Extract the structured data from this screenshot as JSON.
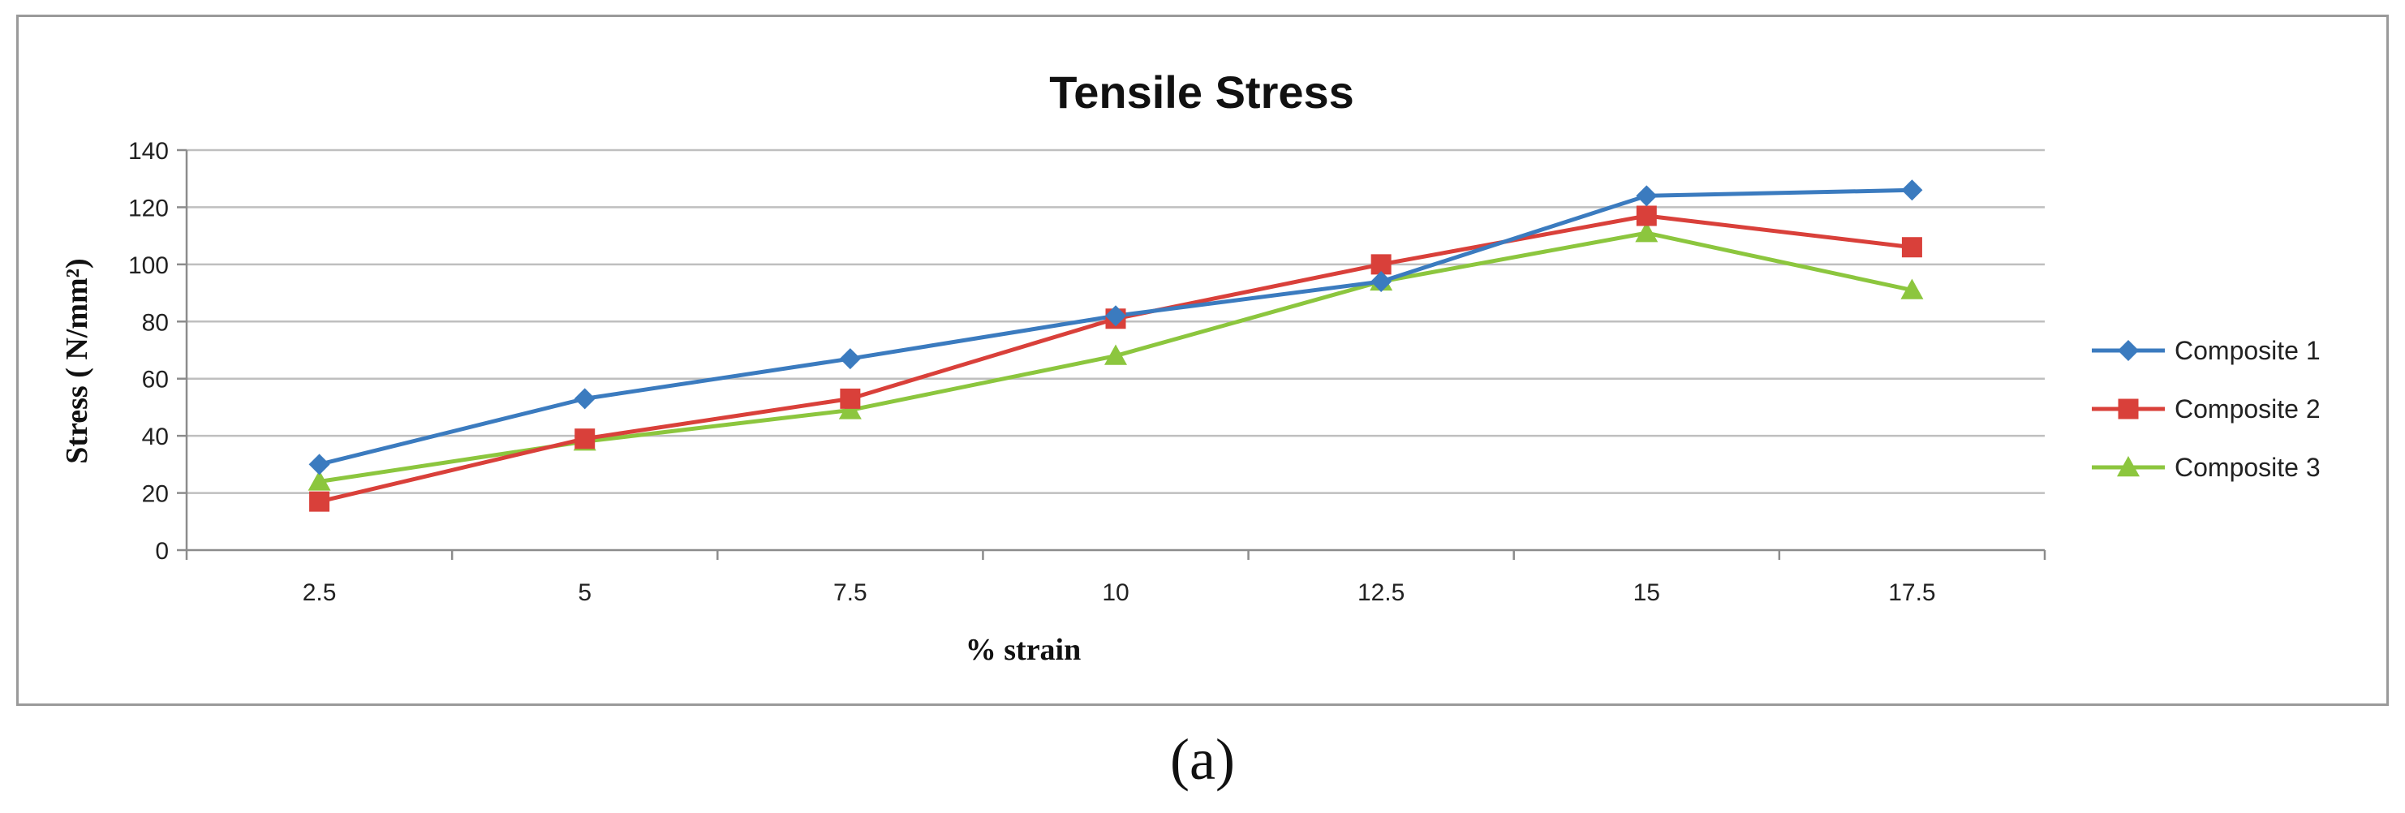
{
  "caption": "(a)",
  "chart_data": {
    "type": "line",
    "title": "Tensile Stress",
    "xlabel": "% strain",
    "ylabel": "Stress ( N/mm²)",
    "categories": [
      "2.5",
      "5",
      "7.5",
      "10",
      "12.5",
      "15",
      "17.5"
    ],
    "ylim": [
      0,
      140
    ],
    "yticks": [
      0,
      20,
      40,
      60,
      80,
      100,
      120,
      140
    ],
    "grid": true,
    "legend_position": "right",
    "series": [
      {
        "name": "Composite 1",
        "color": "#3b7bbf",
        "marker": "diamond",
        "values": [
          30,
          53,
          67,
          82,
          94,
          124,
          126
        ]
      },
      {
        "name": "Composite 2",
        "color": "#d9403a",
        "marker": "square",
        "values": [
          17,
          39,
          53,
          81,
          100,
          117,
          106
        ]
      },
      {
        "name": "Composite 3",
        "color": "#8cc63e",
        "marker": "triangle",
        "values": [
          24,
          38,
          49,
          68,
          94,
          111,
          91
        ]
      }
    ]
  }
}
